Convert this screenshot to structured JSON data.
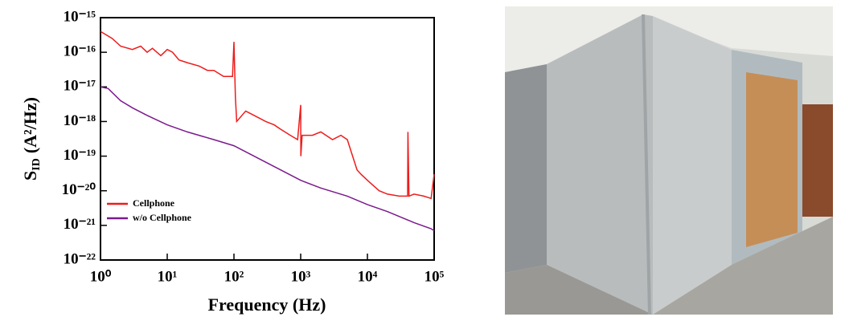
{
  "chart_data": {
    "type": "line",
    "xlabel": "Frequency (Hz)",
    "ylabel": "S",
    "ylabel_sub": "ID",
    "ylabel_unit": "(A²/Hz)",
    "xscale": "log",
    "yscale": "log",
    "legend": "lower left",
    "xlim": [
      1,
      100000
    ],
    "ylim": [
      1e-22,
      1e-15
    ],
    "xticks": [
      {
        "value": 1,
        "label": "10⁰"
      },
      {
        "value": 10,
        "label": "10¹"
      },
      {
        "value": 100,
        "label": "10²"
      },
      {
        "value": 1000,
        "label": "10³"
      },
      {
        "value": 10000,
        "label": "10⁴"
      },
      {
        "value": 100000,
        "label": "10⁵"
      }
    ],
    "yticks": [
      {
        "value": 1e-22,
        "label": "10⁻²²"
      },
      {
        "value": 1e-21,
        "label": "10⁻²¹"
      },
      {
        "value": 1e-20,
        "label": "10⁻²⁰"
      },
      {
        "value": 1e-19,
        "label": "10⁻¹⁹"
      },
      {
        "value": 1e-18,
        "label": "10⁻¹⁸"
      },
      {
        "value": 1e-17,
        "label": "10⁻¹⁷"
      },
      {
        "value": 1e-16,
        "label": "10⁻¹⁶"
      },
      {
        "value": 1e-15,
        "label": "10⁻¹⁵"
      }
    ],
    "series": [
      {
        "name": "Cellphone",
        "color": "#ee1c1c",
        "x": [
          1,
          1.5,
          2,
          3,
          4,
          5,
          6,
          8,
          10,
          12,
          15,
          20,
          30,
          40,
          50,
          70,
          95,
          100,
          105,
          110,
          150,
          200,
          300,
          400,
          500,
          700,
          900,
          1000,
          1005,
          1050,
          1500,
          2000,
          3000,
          4000,
          5000,
          6000,
          7000,
          8000,
          10000,
          15000,
          20000,
          30000,
          40000,
          40500,
          42000,
          50000,
          70000,
          90000,
          100000
        ],
        "values": [
          4e-16,
          2.5e-16,
          1.5e-16,
          1.2e-16,
          1.5e-16,
          1e-16,
          1.3e-16,
          8e-17,
          1.2e-16,
          1e-16,
          6e-17,
          5e-17,
          4e-17,
          3e-17,
          3e-17,
          2e-17,
          2e-17,
          2e-16,
          5e-18,
          1e-18,
          2e-18,
          1.5e-18,
          1e-18,
          8e-19,
          6e-19,
          4e-19,
          3e-19,
          3e-18,
          1e-19,
          4e-19,
          4e-19,
          5e-19,
          3e-19,
          4e-19,
          3e-19,
          1e-19,
          4e-20,
          3e-20,
          2e-20,
          1e-20,
          8e-21,
          7e-21,
          7e-21,
          5e-19,
          7e-21,
          8e-21,
          7e-21,
          6e-21,
          3e-20
        ]
      },
      {
        "name": "w/o Cellphone",
        "color": "#7b1a8c",
        "x": [
          1,
          1.3,
          2,
          3,
          5,
          10,
          20,
          50,
          100,
          200,
          500,
          1000,
          2000,
          5000,
          10000,
          20000,
          50000,
          90000,
          100000
        ],
        "values": [
          1e-17,
          9e-18,
          4e-18,
          2.5e-18,
          1.5e-18,
          8e-19,
          5e-19,
          3e-19,
          2e-19,
          1e-19,
          4e-20,
          2e-20,
          1.2e-20,
          7e-21,
          4e-21,
          2.5e-21,
          1.2e-21,
          8e-22,
          7e-22
        ]
      }
    ]
  }
}
